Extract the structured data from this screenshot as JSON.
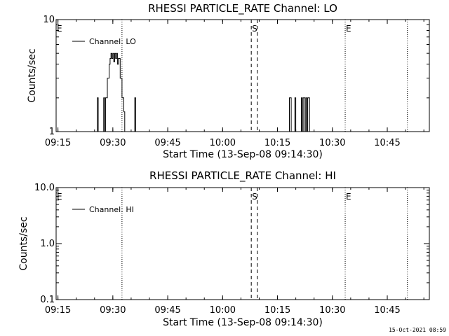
{
  "footer": "15-Oct-2021 08:59",
  "chart_data": [
    {
      "type": "line",
      "title": "RHESSI PARTICLE_RATE Channel: LO",
      "xlabel": "Start Time (13-Sep-08 09:14:30)",
      "ylabel": "Counts/sec",
      "yscale": "log",
      "xlim": [
        "09:14:30",
        "10:56:30"
      ],
      "ylim": [
        1,
        10
      ],
      "x_ticks": [
        "09:15",
        "09:30",
        "09:45",
        "10:00",
        "10:15",
        "10:30",
        "10:45"
      ],
      "y_ticks": [
        {
          "value": 1,
          "label": "1"
        },
        {
          "value": 10,
          "label": "10"
        }
      ],
      "legend": {
        "placement": "top-left",
        "entries": [
          "Channel: LO"
        ]
      },
      "markers": [
        {
          "time": "09:14:30",
          "label": "E",
          "style": "dotted"
        },
        {
          "time": "09:32:30",
          "style": "dotted"
        },
        {
          "time": "10:07:50",
          "label": "S",
          "style": "dashed"
        },
        {
          "time": "10:09:30",
          "style": "dashed"
        },
        {
          "time": "10:33:30",
          "label": "E",
          "style": "dotted"
        },
        {
          "time": "10:50:30",
          "style": "dotted"
        }
      ],
      "series": [
        {
          "name": "Channel: LO",
          "x": [
            "09:25:30",
            "09:25:45",
            "09:26:00",
            "09:26:30",
            "09:26:45",
            "09:27:15",
            "09:27:30",
            "09:27:45",
            "09:28:00",
            "09:28:30",
            "09:29:00",
            "09:29:15",
            "09:29:30",
            "09:29:45",
            "09:30:00",
            "09:30:15",
            "09:30:30",
            "09:30:45",
            "09:31:00",
            "09:31:15",
            "09:31:30",
            "09:32:00",
            "09:32:30",
            "09:33:00",
            "09:33:15",
            "09:35:45",
            "09:36:00",
            "09:36:15",
            "09:36:30",
            "10:18:00",
            "10:18:15",
            "10:18:30",
            "10:18:45",
            "10:19:30",
            "10:19:45",
            "10:20:00",
            "10:20:15",
            "10:21:15",
            "10:21:30",
            "10:21:45",
            "10:22:00",
            "10:22:15",
            "10:22:30",
            "10:22:45",
            "10:23:00",
            "10:23:15",
            "10:23:30",
            "10:23:45",
            "10:24:00"
          ],
          "y": [
            1,
            2,
            1,
            1,
            1,
            1,
            2,
            1,
            2,
            3,
            4,
            4.5,
            5,
            4.5,
            5,
            4.2,
            5,
            4.5,
            5,
            4,
            4.5,
            3,
            2,
            1.5,
            1,
            1,
            2,
            1,
            1,
            1,
            2,
            2,
            1,
            1,
            2,
            1,
            1,
            1,
            2,
            1,
            2,
            2,
            1,
            2,
            1,
            2,
            2,
            1,
            1
          ]
        }
      ]
    },
    {
      "type": "line",
      "title": "RHESSI PARTICLE_RATE Channel: HI",
      "xlabel": "Start Time (13-Sep-08 09:14:30)",
      "ylabel": "Counts/sec",
      "yscale": "log",
      "xlim": [
        "09:14:30",
        "10:56:30"
      ],
      "ylim": [
        0.1,
        10
      ],
      "x_ticks": [
        "09:15",
        "09:30",
        "09:45",
        "10:00",
        "10:15",
        "10:30",
        "10:45"
      ],
      "y_ticks": [
        {
          "value": 0.1,
          "label": "0.1"
        },
        {
          "value": 1,
          "label": "1.0"
        },
        {
          "value": 10,
          "label": "10.0"
        }
      ],
      "legend": {
        "placement": "top-left",
        "entries": [
          "Channel: HI"
        ]
      },
      "markers": [
        {
          "time": "09:14:30",
          "label": "E",
          "style": "dotted"
        },
        {
          "time": "09:32:30",
          "style": "dotted"
        },
        {
          "time": "10:07:50",
          "label": "S",
          "style": "dashed"
        },
        {
          "time": "10:09:30",
          "style": "dashed"
        },
        {
          "time": "10:33:30",
          "label": "E",
          "style": "dotted"
        },
        {
          "time": "10:50:30",
          "style": "dotted"
        }
      ],
      "series": [
        {
          "name": "Channel: HI",
          "x": [],
          "y": []
        }
      ]
    }
  ]
}
